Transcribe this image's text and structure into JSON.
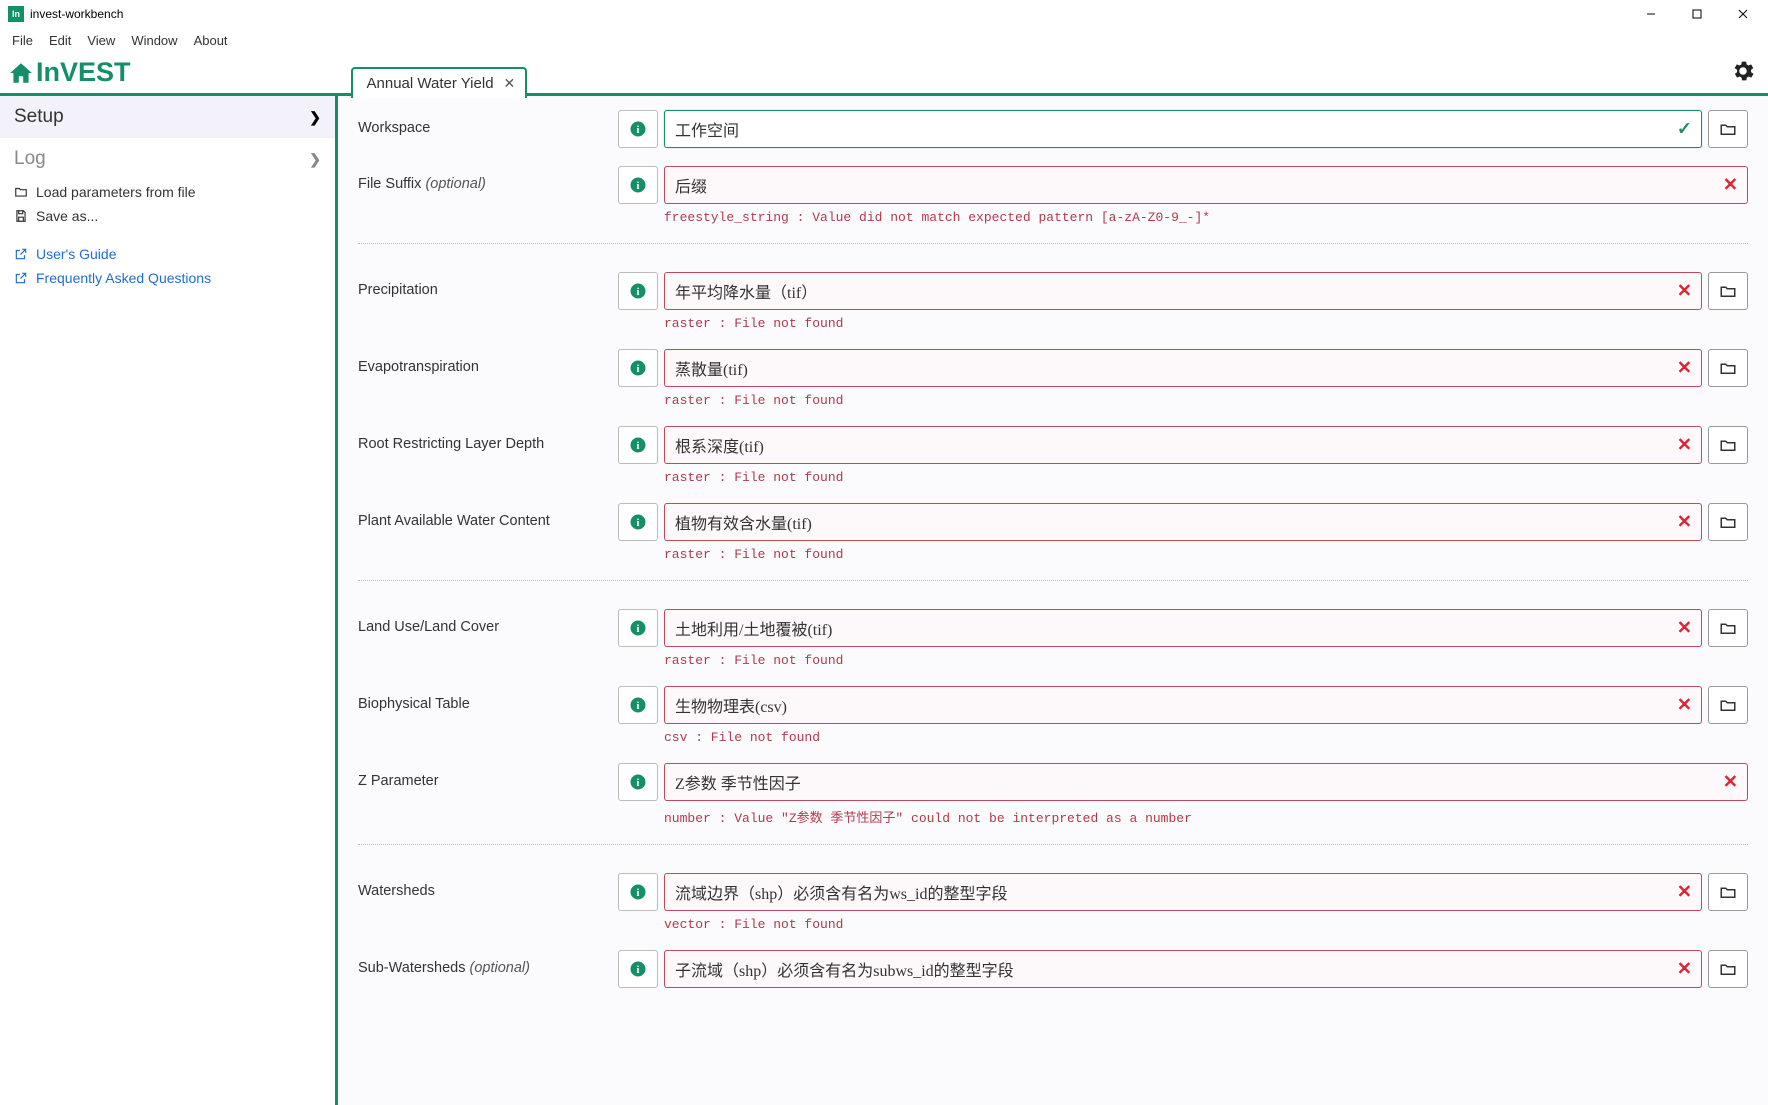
{
  "window": {
    "title": "invest-workbench"
  },
  "menubar": [
    "File",
    "Edit",
    "View",
    "Window",
    "About"
  ],
  "brand": "InVEST",
  "tabs": [
    {
      "label": "Annual Water Yield"
    }
  ],
  "sidebar": {
    "sections": [
      {
        "label": "Setup",
        "active": true
      },
      {
        "label": "Log",
        "active": false
      }
    ],
    "links": [
      {
        "label": "Load parameters from file",
        "icon": "folder",
        "blue": false
      },
      {
        "label": "Save as...",
        "icon": "save",
        "blue": false
      },
      {
        "label": "User's Guide",
        "icon": "external",
        "blue": true
      },
      {
        "label": "Frequently Asked Questions",
        "icon": "external",
        "blue": true
      }
    ]
  },
  "form": {
    "groups": [
      {
        "fields": [
          {
            "label": "Workspace",
            "value": "工作空间",
            "valid": true,
            "browse": true
          },
          {
            "label": "File Suffix",
            "optional": "(optional)",
            "value": "后缀",
            "error": "freestyle_string : Value did not match expected pattern [a-zA-Z0-9_-]*",
            "browse": false
          }
        ]
      },
      {
        "fields": [
          {
            "label": "Precipitation",
            "value": "年平均降水量（tif）",
            "error": "raster : File not found",
            "browse": true
          },
          {
            "label": "Evapotranspiration",
            "value": "蒸散量(tif)",
            "error": "raster : File not found",
            "browse": true
          },
          {
            "label": "Root Restricting Layer Depth",
            "value": "根系深度(tif)",
            "error": "raster : File not found",
            "browse": true
          },
          {
            "label": "Plant Available Water Content",
            "value": "植物有效含水量(tif)",
            "error": "raster : File not found",
            "browse": true
          }
        ]
      },
      {
        "fields": [
          {
            "label": "Land Use/Land Cover",
            "value": "土地利用/土地覆被(tif)",
            "error": "raster : File not found",
            "browse": true
          },
          {
            "label": "Biophysical Table",
            "value": "生物物理表(csv)",
            "error": "csv : File not found",
            "browse": true
          },
          {
            "label": "Z Parameter",
            "value": "Z参数 季节性因子",
            "error": "number : Value \"Z参数 季节性因子\" could not be interpreted as a number",
            "browse": false
          }
        ]
      },
      {
        "fields": [
          {
            "label": "Watersheds",
            "value": "流域边界（shp）必须含有名为ws_id的整型字段",
            "error": "vector : File not found",
            "browse": true
          },
          {
            "label": "Sub-Watersheds",
            "optional": "(optional)",
            "value": "子流域（shp）必须含有名为subws_id的整型字段",
            "error": "",
            "browse": true,
            "err_icon": true
          }
        ]
      }
    ]
  },
  "colors": {
    "primary": "#148f68",
    "error": "#b03a4a",
    "link": "#1f6fd0",
    "bg_main": "#fbfbfe"
  }
}
